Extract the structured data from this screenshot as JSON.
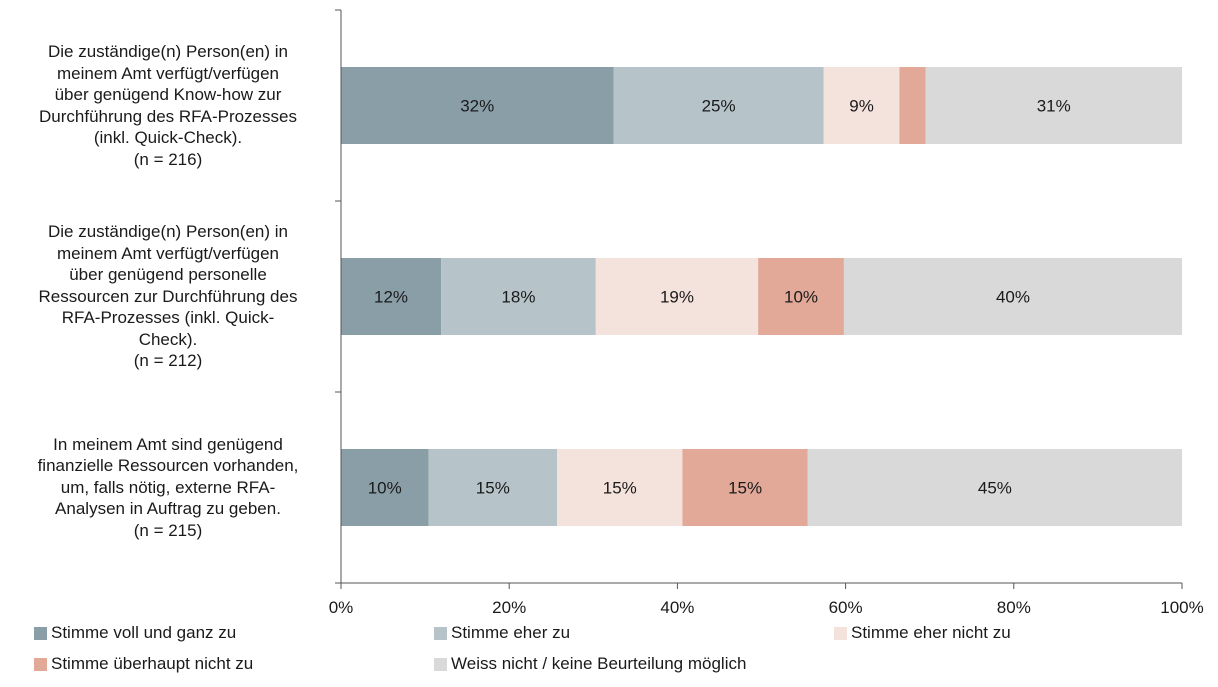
{
  "chart_data": {
    "type": "bar",
    "orientation": "horizontal",
    "stacked": true,
    "categories": [
      [
        "Die zuständige(n) Person(en) in",
        "meinem Amt verfügt/verfügen",
        "über genügend Know-how zur",
        "Durchführung des RFA-Prozesses",
        "(inkl. Quick-Check).",
        "(n = 216)"
      ],
      [
        "Die zuständige(n) Person(en) in",
        "meinem Amt verfügt/verfügen",
        "über genügend personelle",
        "Ressourcen zur Durchführung des",
        "RFA-Prozesses (inkl. Quick-",
        "Check).",
        "(n = 212)"
      ],
      [
        "In meinem Amt sind genügend",
        "finanzielle Ressourcen vorhanden,",
        "um, falls nötig, externe RFA-",
        "Analysen in Auftrag zu geben.",
        "(n = 215)"
      ]
    ],
    "series": [
      {
        "name": "Stimme voll und ganz zu",
        "color": "#8a9ea8",
        "values": [
          32.4,
          11.9,
          10.4
        ],
        "labels": [
          "32%",
          "12%",
          "10%"
        ]
      },
      {
        "name": "Stimme eher zu",
        "color": "#b6c4ca",
        "values": [
          25.0,
          18.4,
          15.3
        ],
        "labels": [
          "25%",
          "18%",
          "15%"
        ]
      },
      {
        "name": "Stimme eher nicht zu",
        "color": "#f4e2dc",
        "values": [
          9.0,
          19.3,
          14.9
        ],
        "labels": [
          "9%",
          "19%",
          "15%"
        ]
      },
      {
        "name": "Stimme überhaupt nicht zu",
        "color": "#e2a898",
        "values": [
          3.1,
          10.2,
          14.9
        ],
        "labels": [
          "",
          "10%",
          "15%"
        ]
      },
      {
        "name": "Weiss nicht / keine Beurteilung möglich",
        "color": "#d9d9d9",
        "values": [
          30.5,
          40.2,
          44.5
        ],
        "labels": [
          "31%",
          "40%",
          "45%"
        ]
      }
    ],
    "xlim": [
      0,
      100
    ],
    "x_ticks": [
      "0%",
      "20%",
      "40%",
      "60%",
      "80%",
      "100%"
    ],
    "legend_position": "bottom",
    "grid": false
  }
}
